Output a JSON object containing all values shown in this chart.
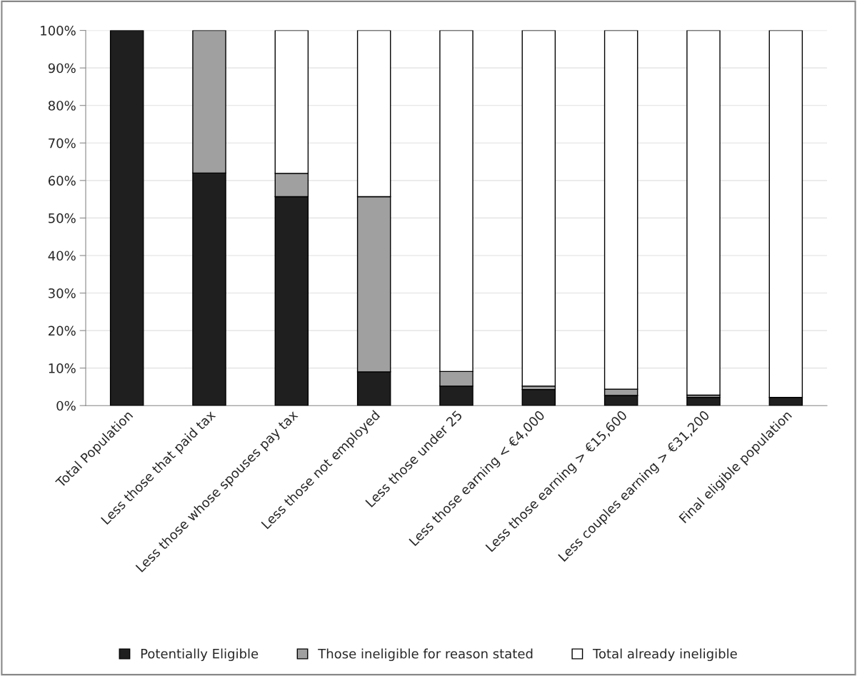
{
  "chart_data": {
    "type": "bar",
    "stacked": true,
    "categories": [
      "Total Population",
      "Less those that paid tax",
      "Less those whose spouses pay tax",
      "Less those not employed",
      "Less those under 25",
      "Less those earning < €4,000",
      "Less those earning > €15,600",
      "Less couples earning > €31,200",
      "Final eligible population"
    ],
    "series": [
      {
        "name": "Potentially Eligible",
        "color": "#1f1f1f",
        "values": [
          100,
          62,
          55.7,
          9,
          5.2,
          4.3,
          2.7,
          2.2,
          2.2
        ]
      },
      {
        "name": "Those ineligible for reason stated",
        "color": "#a0a0a0",
        "values": [
          0,
          38,
          6.2,
          46.7,
          3.9,
          0.9,
          1.7,
          0.6,
          0
        ]
      },
      {
        "name": "Total already ineligible",
        "color": "#ffffff",
        "values": [
          0,
          0,
          38.1,
          44.3,
          90.9,
          94.8,
          95.6,
          97.2,
          97.8
        ]
      }
    ],
    "ylim": [
      0,
      100
    ],
    "yticks": [
      {
        "value": 0,
        "label": "0%"
      },
      {
        "value": 10,
        "label": "10%"
      },
      {
        "value": 20,
        "label": "20%"
      },
      {
        "value": 30,
        "label": "30%"
      },
      {
        "value": 40,
        "label": "40%"
      },
      {
        "value": 50,
        "label": "50%"
      },
      {
        "value": 60,
        "label": "60%"
      },
      {
        "value": 70,
        "label": "70%"
      },
      {
        "value": 80,
        "label": "80%"
      },
      {
        "value": 90,
        "label": "90%"
      },
      {
        "value": 100,
        "label": "100%"
      }
    ],
    "grid": "y",
    "legend": "bottom"
  }
}
